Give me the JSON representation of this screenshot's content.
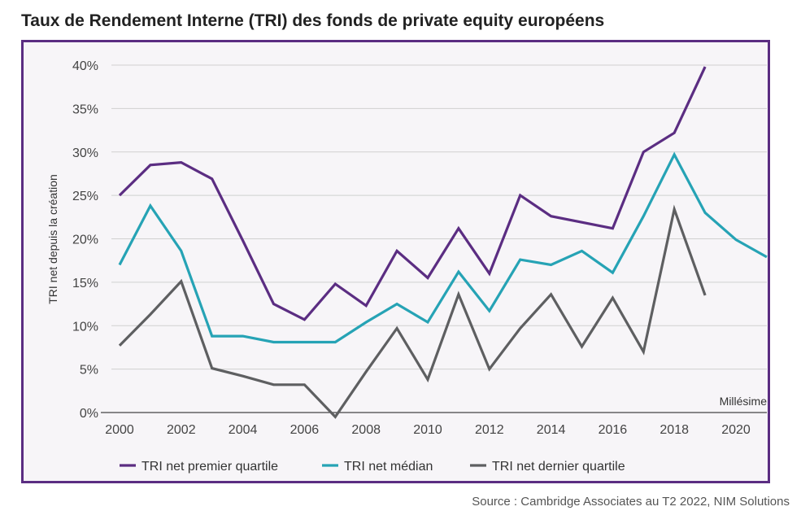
{
  "title": "Taux de Rendement Interne (TRI) des fonds de private equity européens",
  "source": "Source : Cambridge Associates au T2 2022, NIM Solutions",
  "colors": {
    "frame": "#5b2d82",
    "premier": "#5b2d82",
    "median": "#26a3b5",
    "dernier": "#5e5f61",
    "grid": "#d0d0d0"
  },
  "chart_data": {
    "type": "line",
    "title": "Taux de Rendement Interne (TRI) des fonds de private equity européens",
    "xlabel": "Millésime",
    "ylabel": "TRI net depuis la création",
    "xlim": [
      2000,
      2021
    ],
    "ylim": [
      0,
      40
    ],
    "x_ticks": [
      2000,
      2002,
      2004,
      2006,
      2008,
      2010,
      2012,
      2014,
      2016,
      2018,
      2020
    ],
    "y_ticks": [
      0,
      5,
      10,
      15,
      20,
      25,
      30,
      35,
      40
    ],
    "y_tick_labels": [
      "0%",
      "5%",
      "10%",
      "15%",
      "20%",
      "25%",
      "30%",
      "35%",
      "40%"
    ],
    "legend_position": "bottom",
    "series": [
      {
        "name": "TRI net premier quartile",
        "color": "#5b2d82",
        "x": [
          2000,
          2001,
          2002,
          2003,
          2004,
          2005,
          2006,
          2007,
          2008,
          2009,
          2010,
          2011,
          2012,
          2013,
          2014,
          2015,
          2016,
          2017,
          2018,
          2019
        ],
        "values": [
          25,
          28.5,
          28.8,
          26.9,
          19.8,
          12.5,
          10.7,
          14.8,
          12.3,
          18.6,
          15.5,
          21.2,
          16,
          25,
          22.6,
          21.9,
          21.2,
          30,
          32.2,
          39.8
        ]
      },
      {
        "name": "TRI net médian",
        "color": "#26a3b5",
        "x": [
          2000,
          2001,
          2002,
          2003,
          2004,
          2005,
          2006,
          2007,
          2008,
          2009,
          2010,
          2011,
          2012,
          2013,
          2014,
          2015,
          2016,
          2017,
          2018,
          2019,
          2020,
          2021
        ],
        "values": [
          17,
          23.8,
          18.6,
          8.8,
          8.8,
          8.1,
          8.1,
          8.1,
          10.4,
          12.5,
          10.4,
          16.2,
          11.7,
          17.6,
          17,
          18.6,
          16.1,
          22.6,
          29.7,
          23,
          19.9,
          17.9
        ]
      },
      {
        "name": "TRI net dernier quartile",
        "color": "#5e5f61",
        "x": [
          2000,
          2001,
          2002,
          2003,
          2004,
          2005,
          2006,
          2007,
          2008,
          2009,
          2010,
          2011,
          2012,
          2013,
          2014,
          2015,
          2016,
          2017,
          2018,
          2019
        ],
        "values": [
          7.7,
          11.3,
          15.1,
          5.1,
          4.2,
          3.2,
          3.2,
          -0.5,
          4.7,
          9.7,
          3.8,
          13.6,
          5,
          9.7,
          13.6,
          7.6,
          13.2,
          7,
          23.4,
          13.5
        ]
      }
    ]
  }
}
